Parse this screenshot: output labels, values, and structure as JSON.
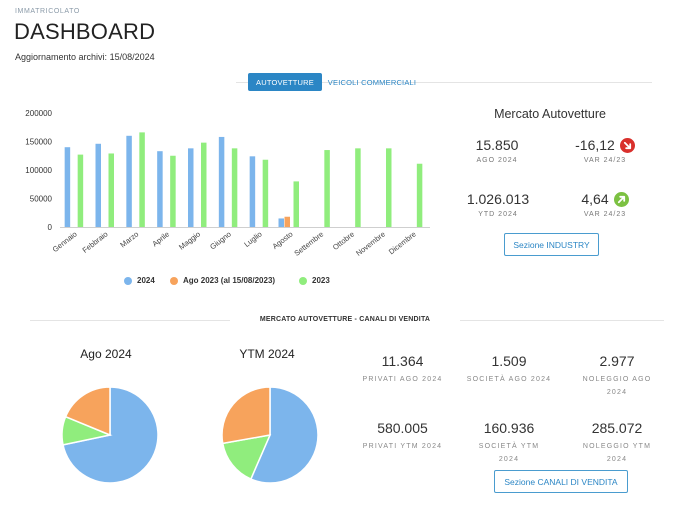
{
  "header": {
    "eyebrow": "IMMATRICOLATO",
    "title": "DASHBOARD",
    "updated_label": "Aggiornamento archivi:",
    "updated_date": "15/08/2024"
  },
  "tabs": [
    {
      "label": "AUTOVETTURE",
      "active": true
    },
    {
      "label": "VEICOLI COMMERCIALI",
      "active": false
    }
  ],
  "chart_data": [
    {
      "type": "bar",
      "title": "",
      "categories": [
        "Gennaio",
        "Febbraio",
        "Marzo",
        "Aprile",
        "Maggio",
        "Giugno",
        "Luglio",
        "Agosto",
        "Settembre",
        "Ottobre",
        "Novembre",
        "Dicembre"
      ],
      "series": [
        {
          "name": "2024",
          "color": "#7cb5ec",
          "values": [
            140000,
            146000,
            160000,
            133000,
            138000,
            158000,
            124000,
            15000,
            null,
            null,
            null,
            null
          ]
        },
        {
          "name": "Ago 2023 (al 15/08/2023)",
          "color": "#f7a35c",
          "values": [
            null,
            null,
            null,
            null,
            null,
            null,
            null,
            18000,
            null,
            null,
            null,
            null
          ]
        },
        {
          "name": "2023",
          "color": "#90ed7d",
          "values": [
            127000,
            129000,
            166000,
            125000,
            148000,
            138000,
            118000,
            80000,
            135000,
            138000,
            138000,
            111000
          ]
        }
      ],
      "yticks": [
        "0",
        "50000",
        "100000",
        "150000",
        "200000"
      ],
      "ylim": [
        0,
        200000
      ],
      "legend": "bottom",
      "grid": false
    },
    {
      "type": "pie",
      "title": "Ago 2024",
      "slices": [
        {
          "label": "Privati",
          "value": 11364,
          "color": "#7cb5ec"
        },
        {
          "label": "Società",
          "value": 1509,
          "color": "#90ed7d"
        },
        {
          "label": "Noleggio",
          "value": 2977,
          "color": "#f7a35c"
        }
      ]
    },
    {
      "type": "pie",
      "title": "YTM 2024",
      "slices": [
        {
          "label": "Privati",
          "value": 580005,
          "color": "#7cb5ec"
        },
        {
          "label": "Società",
          "value": 160936,
          "color": "#90ed7d"
        },
        {
          "label": "Noleggio",
          "value": 285072,
          "color": "#f7a35c"
        }
      ]
    }
  ],
  "legend": [
    {
      "label": "2024",
      "color": "#7cb5ec"
    },
    {
      "label": "Ago 2023 (al 15/08/2023)",
      "color": "#f7a35c"
    },
    {
      "label": "2023",
      "color": "#90ed7d"
    }
  ],
  "market": {
    "title": "Mercato Autovetture",
    "kpis": [
      {
        "value": "15.850",
        "label": "AGO 2024"
      },
      {
        "value": "-16,12",
        "label": "VAR 24/23",
        "direction": "down",
        "color": "#d9302c"
      },
      {
        "value": "1.026.013",
        "label": "YTD 2024"
      },
      {
        "value": "4,64",
        "label": "VAR 24/23",
        "direction": "up",
        "color": "#7cc142"
      }
    ],
    "button_label": "Sezione INDUSTRY"
  },
  "channels": {
    "section_title": "MERCATO AUTOVETTURE - CANALI DI VENDITA",
    "pie_titles": [
      "Ago 2024",
      "YTM 2024"
    ],
    "stats": [
      {
        "value": "11.364",
        "label": "PRIVATI AGO 2024"
      },
      {
        "value": "1.509",
        "label": "SOCIETÀ AGO 2024"
      },
      {
        "value": "2.977",
        "label": "NOLEGGIO AGO 2024"
      },
      {
        "value": "580.005",
        "label": "PRIVATI YTM 2024"
      },
      {
        "value": "160.936",
        "label": "SOCIETÀ YTM 2024"
      },
      {
        "value": "285.072",
        "label": "NOLEGGIO YTM 2024"
      }
    ],
    "button_label": "Sezione CANALI DI VENDITA"
  }
}
